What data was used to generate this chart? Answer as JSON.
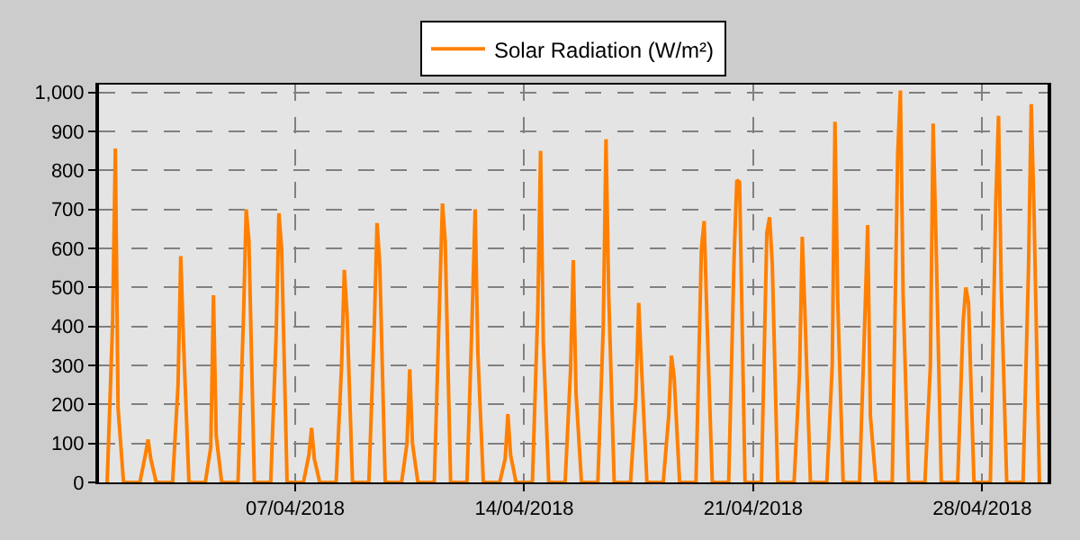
{
  "chart_data": {
    "type": "line",
    "x": [
      "2018-04-01T06:00",
      "2018-04-01T10:00",
      "2018-04-01T12:00",
      "2018-04-01T14:00",
      "2018-04-01T18:00",
      "2018-04-02T06:00",
      "2018-04-02T10:00",
      "2018-04-02T12:00",
      "2018-04-02T14:00",
      "2018-04-02T18:00",
      "2018-04-03T06:00",
      "2018-04-03T10:00",
      "2018-04-03T12:00",
      "2018-04-03T14:00",
      "2018-04-03T18:00",
      "2018-04-04T06:00",
      "2018-04-04T10:00",
      "2018-04-04T12:00",
      "2018-04-04T14:00",
      "2018-04-04T18:00",
      "2018-04-05T06:00",
      "2018-04-05T10:00",
      "2018-04-05T12:00",
      "2018-04-05T14:00",
      "2018-04-05T18:00",
      "2018-04-06T06:00",
      "2018-04-06T10:00",
      "2018-04-06T12:00",
      "2018-04-06T14:00",
      "2018-04-06T18:00",
      "2018-04-07T06:00",
      "2018-04-07T10:00",
      "2018-04-07T12:00",
      "2018-04-07T14:00",
      "2018-04-07T18:00",
      "2018-04-08T06:00",
      "2018-04-08T10:00",
      "2018-04-08T12:00",
      "2018-04-08T14:00",
      "2018-04-08T18:00",
      "2018-04-09T06:00",
      "2018-04-09T10:00",
      "2018-04-09T12:00",
      "2018-04-09T14:00",
      "2018-04-09T18:00",
      "2018-04-10T06:00",
      "2018-04-10T10:00",
      "2018-04-10T12:00",
      "2018-04-10T14:00",
      "2018-04-10T18:00",
      "2018-04-11T06:00",
      "2018-04-11T10:00",
      "2018-04-11T12:00",
      "2018-04-11T14:00",
      "2018-04-11T18:00",
      "2018-04-12T06:00",
      "2018-04-12T10:00",
      "2018-04-12T12:00",
      "2018-04-12T14:00",
      "2018-04-12T18:00",
      "2018-04-13T06:00",
      "2018-04-13T10:00",
      "2018-04-13T12:00",
      "2018-04-13T14:00",
      "2018-04-13T18:00",
      "2018-04-14T06:00",
      "2018-04-14T10:00",
      "2018-04-14T12:00",
      "2018-04-14T14:00",
      "2018-04-14T18:00",
      "2018-04-15T06:00",
      "2018-04-15T10:00",
      "2018-04-15T12:00",
      "2018-04-15T14:00",
      "2018-04-15T18:00",
      "2018-04-16T06:00",
      "2018-04-16T10:00",
      "2018-04-16T12:00",
      "2018-04-16T14:00",
      "2018-04-16T18:00",
      "2018-04-17T06:00",
      "2018-04-17T10:00",
      "2018-04-17T12:00",
      "2018-04-17T14:00",
      "2018-04-17T18:00",
      "2018-04-18T06:00",
      "2018-04-18T10:00",
      "2018-04-18T12:00",
      "2018-04-18T14:00",
      "2018-04-18T18:00",
      "2018-04-19T06:00",
      "2018-04-19T10:00",
      "2018-04-19T12:00",
      "2018-04-19T14:00",
      "2018-04-19T18:00",
      "2018-04-20T06:00",
      "2018-04-20T10:00",
      "2018-04-20T12:00",
      "2018-04-20T14:00",
      "2018-04-20T18:00",
      "2018-04-21T06:00",
      "2018-04-21T10:00",
      "2018-04-21T12:00",
      "2018-04-21T14:00",
      "2018-04-21T18:00",
      "2018-04-22T06:00",
      "2018-04-22T10:00",
      "2018-04-22T12:00",
      "2018-04-22T14:00",
      "2018-04-22T18:00",
      "2018-04-23T06:00",
      "2018-04-23T10:00",
      "2018-04-23T12:00",
      "2018-04-23T14:00",
      "2018-04-23T18:00",
      "2018-04-24T06:00",
      "2018-04-24T10:00",
      "2018-04-24T12:00",
      "2018-04-24T14:00",
      "2018-04-24T18:00",
      "2018-04-25T06:00",
      "2018-04-25T10:00",
      "2018-04-25T12:00",
      "2018-04-25T14:00",
      "2018-04-25T18:00",
      "2018-04-26T06:00",
      "2018-04-26T10:00",
      "2018-04-26T12:00",
      "2018-04-26T14:00",
      "2018-04-26T18:00",
      "2018-04-27T06:00",
      "2018-04-27T10:00",
      "2018-04-27T12:00",
      "2018-04-27T14:00",
      "2018-04-27T18:00",
      "2018-04-28T06:00",
      "2018-04-28T10:00",
      "2018-04-28T12:00",
      "2018-04-28T14:00",
      "2018-04-28T18:00",
      "2018-04-29T06:00",
      "2018-04-29T10:00",
      "2018-04-29T12:00",
      "2018-04-29T14:00",
      "2018-04-29T18:00"
    ],
    "series": [
      {
        "name": "Solar Radiation (W/m²)",
        "color": "#ff8000",
        "values": [
          0,
          410,
          856,
          190,
          0,
          0,
          70,
          110,
          60,
          0,
          0,
          250,
          580,
          360,
          0,
          0,
          90,
          480,
          120,
          0,
          0,
          420,
          700,
          620,
          0,
          0,
          380,
          690,
          600,
          0,
          0,
          70,
          140,
          60,
          0,
          0,
          300,
          545,
          430,
          0,
          0,
          400,
          665,
          560,
          0,
          0,
          100,
          290,
          100,
          0,
          0,
          480,
          715,
          620,
          0,
          0,
          450,
          700,
          330,
          0,
          0,
          60,
          175,
          70,
          0,
          0,
          450,
          850,
          360,
          0,
          0,
          290,
          570,
          230,
          0,
          0,
          400,
          880,
          480,
          0,
          0,
          220,
          460,
          300,
          0,
          0,
          170,
          325,
          270,
          0,
          0,
          600,
          670,
          430,
          0,
          0,
          580,
          775,
          770,
          0,
          0,
          640,
          680,
          560,
          0,
          0,
          280,
          630,
          430,
          0,
          0,
          300,
          925,
          470,
          0,
          0,
          430,
          660,
          170,
          0,
          0,
          840,
          1005,
          480,
          0,
          0,
          300,
          920,
          640,
          0,
          0,
          410,
          500,
          460,
          0,
          0,
          720,
          940,
          500,
          0,
          0,
          550,
          970,
          700,
          0
        ]
      }
    ],
    "xlim": [
      "2018-04-01",
      "2018-04-30"
    ],
    "xticks": [
      {
        "value": "2018-04-07",
        "label": "07/04/2018"
      },
      {
        "value": "2018-04-14",
        "label": "14/04/2018"
      },
      {
        "value": "2018-04-21",
        "label": "21/04/2018"
      },
      {
        "value": "2018-04-28",
        "label": "28/04/2018"
      }
    ],
    "ylim": [
      0,
      1020
    ],
    "yticks": [
      0,
      100,
      200,
      300,
      400,
      500,
      600,
      700,
      800,
      900,
      {
        "value": 1000,
        "label": "1,000"
      }
    ],
    "grid": true,
    "legend": "top",
    "marker": "none",
    "line_style": "solid"
  }
}
